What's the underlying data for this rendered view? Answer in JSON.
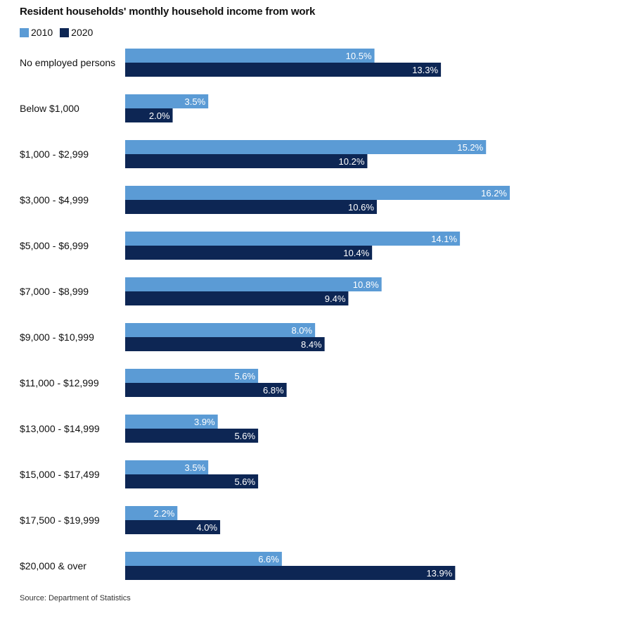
{
  "title": "Resident households' monthly household income from work",
  "source": "Source: Department of Statistics",
  "colors": {
    "s2010": "#5b9bd5",
    "s2020": "#0d2654",
    "label": "#ffffff",
    "text": "#111111"
  },
  "chart_data": {
    "type": "bar",
    "orientation": "horizontal",
    "title": "Resident households' monthly household income from work",
    "xlabel": "",
    "ylabel": "",
    "unit": "%",
    "xlim": [
      0,
      16.2
    ],
    "grid": false,
    "legend_position": "top-left",
    "categories": [
      "No employed persons",
      "Below $1,000",
      "$1,000 - $2,999",
      "$3,000 - $4,999",
      "$5,000 - $6,999",
      "$7,000 - $8,999",
      "$9,000 - $10,999",
      "$11,000 - $12,999",
      "$13,000 - $14,999",
      "$15,000 - $17,499",
      "$17,500 - $19,999",
      "$20,000 & over"
    ],
    "series": [
      {
        "name": "2010",
        "values": [
          10.5,
          3.5,
          15.2,
          16.2,
          14.1,
          10.8,
          8.0,
          5.6,
          3.9,
          3.5,
          2.2,
          6.6
        ],
        "labels": [
          "10.5%",
          "3.5%",
          "15.2%",
          "16.2%",
          "14.1%",
          "10.8%",
          "8.0%",
          "5.6%",
          "3.9%",
          "3.5%",
          "2.2%",
          "6.6%"
        ]
      },
      {
        "name": "2020",
        "values": [
          13.3,
          2.0,
          10.2,
          10.6,
          10.4,
          9.4,
          8.4,
          6.8,
          5.6,
          5.6,
          4.0,
          13.9
        ],
        "labels": [
          "13.3%",
          "2.0%",
          "10.2%",
          "10.6%",
          "10.4%",
          "9.4%",
          "8.4%",
          "6.8%",
          "5.6%",
          "5.6%",
          "4.0%",
          "13.9%"
        ]
      }
    ]
  }
}
